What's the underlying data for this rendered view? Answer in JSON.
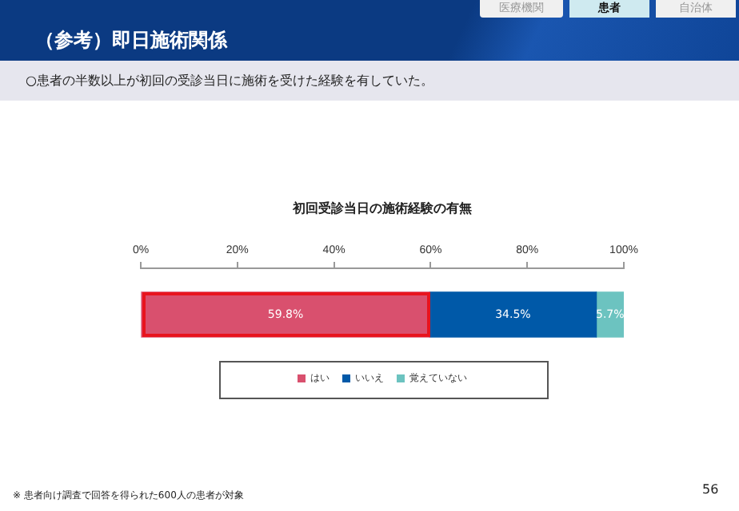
{
  "chart_data": {
    "type": "bar",
    "orientation": "horizontal",
    "stacked": true,
    "title": "初回受診当日の施術経験の有無",
    "categories": [
      null
    ],
    "series": [
      {
        "name": "はい",
        "color": "#d9506e",
        "values": [
          59.8
        ],
        "value_labels": [
          "59.8%"
        ]
      },
      {
        "name": "いいえ",
        "color": "#0059a8",
        "values": [
          34.5
        ],
        "value_labels": [
          "34.5%"
        ]
      },
      {
        "name": "覚えていない",
        "color": "#6cc3c0",
        "values": [
          5.7
        ],
        "value_labels": [
          "5.7%"
        ]
      }
    ],
    "xlim": [
      0,
      100
    ],
    "xticks": [
      {
        "value": 0,
        "label": "0%"
      },
      {
        "value": 20,
        "label": "20%"
      },
      {
        "value": 40,
        "label": "40%"
      },
      {
        "value": 60,
        "label": "60%"
      },
      {
        "value": 80,
        "label": "80%"
      },
      {
        "value": 100,
        "label": "100%"
      }
    ],
    "grid": false,
    "legend": "bottom",
    "annotations": [
      "（参考）即日施術関係",
      "医療機関",
      "患者",
      "自治体",
      "○患者の半数以上が初回の受診当日に施術を受けた経験を有していた。",
      "※ 患者向け調査で回答を得られた600人の患者が対象",
      "56"
    ]
  }
}
